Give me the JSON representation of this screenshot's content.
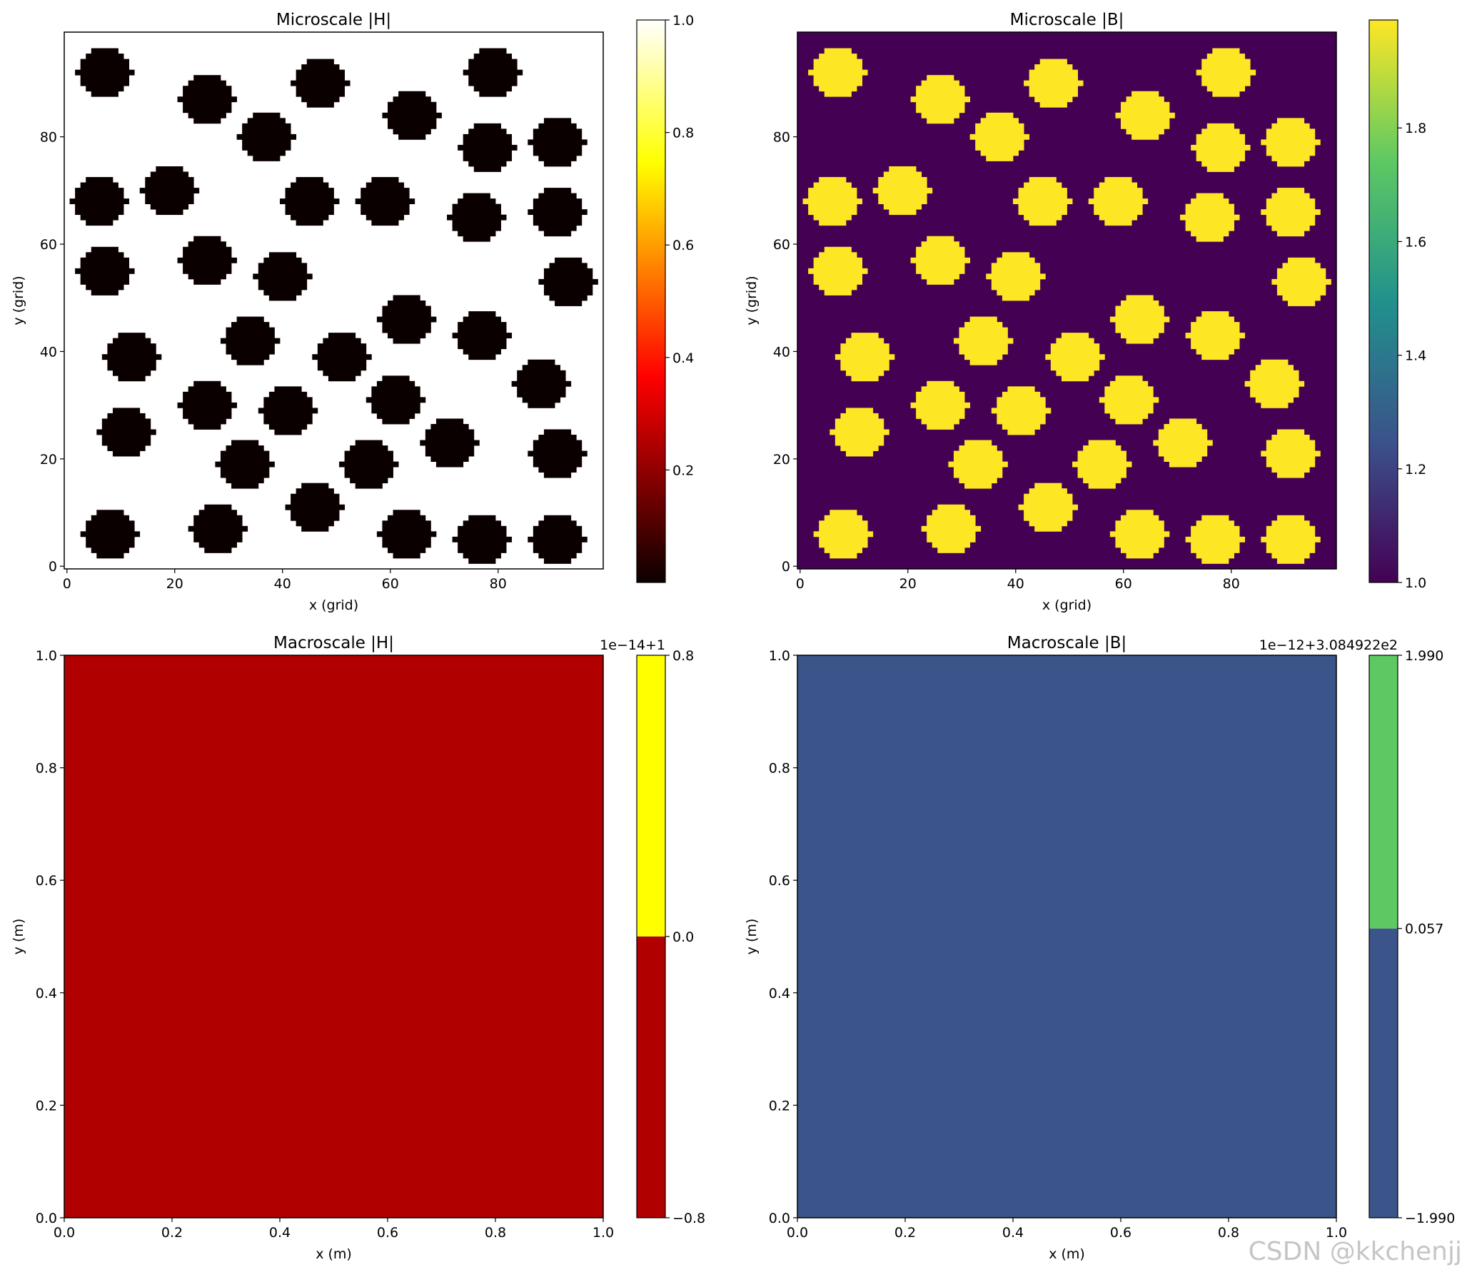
{
  "watermark": "CSDN @kkchenjj",
  "chart_data": [
    {
      "type": "heatmap",
      "id": "micro-h",
      "title": "Microscale |H|",
      "xlabel": "x (grid)",
      "ylabel": "y (grid)",
      "xlim": [
        -0.5,
        99.5
      ],
      "ylim": [
        -0.5,
        99.5
      ],
      "xticks": [
        "0",
        "20",
        "40",
        "60",
        "80"
      ],
      "yticks": [
        "0",
        "20",
        "40",
        "60",
        "80"
      ],
      "colormap": "hot",
      "background_value": 1.0,
      "inclusion_value": 0.0,
      "inclusion_color": "#0b0000",
      "background_color": "#ffffff",
      "inclusion_radius": 4.5,
      "inclusion_centers": [
        [
          7,
          92
        ],
        [
          26,
          87
        ],
        [
          47,
          90
        ],
        [
          79,
          92
        ],
        [
          37,
          80
        ],
        [
          64,
          84
        ],
        [
          78,
          78
        ],
        [
          91,
          79
        ],
        [
          6,
          68
        ],
        [
          19,
          70
        ],
        [
          45,
          68
        ],
        [
          59,
          68
        ],
        [
          76,
          65
        ],
        [
          91,
          66
        ],
        [
          7,
          55
        ],
        [
          26,
          57
        ],
        [
          40,
          54
        ],
        [
          93,
          53
        ],
        [
          12,
          39
        ],
        [
          34,
          42
        ],
        [
          51,
          39
        ],
        [
          63,
          46
        ],
        [
          77,
          43
        ],
        [
          88,
          34
        ],
        [
          26,
          30
        ],
        [
          41,
          29
        ],
        [
          61,
          31
        ],
        [
          11,
          25
        ],
        [
          33,
          19
        ],
        [
          56,
          19
        ],
        [
          71,
          23
        ],
        [
          91,
          21
        ],
        [
          46,
          11
        ],
        [
          8,
          6
        ],
        [
          28,
          7
        ],
        [
          63,
          6
        ],
        [
          77,
          5
        ],
        [
          91,
          5
        ]
      ],
      "colorbar": {
        "min": 0.0,
        "max": 1.0,
        "ticks": [
          "0.2",
          "0.4",
          "0.6",
          "0.8",
          "1.0"
        ]
      }
    },
    {
      "type": "heatmap",
      "id": "micro-b",
      "title": "Microscale |B|",
      "xlabel": "x (grid)",
      "ylabel": "y (grid)",
      "xlim": [
        -0.5,
        99.5
      ],
      "ylim": [
        -0.5,
        99.5
      ],
      "xticks": [
        "0",
        "20",
        "40",
        "60",
        "80"
      ],
      "yticks": [
        "0",
        "20",
        "40",
        "60",
        "80"
      ],
      "colormap": "viridis",
      "background_value": 1.0,
      "inclusion_value": 1.99,
      "inclusion_color": "#fde725",
      "background_color": "#440154",
      "colorbar": {
        "min": 1.0,
        "max": 1.99,
        "ticks": [
          "1.0",
          "1.2",
          "1.4",
          "1.6",
          "1.8"
        ]
      }
    },
    {
      "type": "heatmap",
      "id": "macro-h",
      "title": "Macroscale |H|",
      "xlabel": "x (m)",
      "ylabel": "y (m)",
      "xlim": [
        0.0,
        1.0
      ],
      "ylim": [
        0.0,
        1.0
      ],
      "xticks": [
        "0.0",
        "0.2",
        "0.4",
        "0.6",
        "0.8",
        "1.0"
      ],
      "yticks": [
        "0.0",
        "0.2",
        "0.4",
        "0.6",
        "0.8",
        "1.0"
      ],
      "fill_color": "#b00000",
      "colorbar": {
        "offset_text": "1e−14+1",
        "levels": [
          -0.8,
          0.0,
          0.8
        ],
        "ticks": [
          "−0.8",
          "0.0",
          "0.8"
        ],
        "band_colors": [
          "#b00000",
          "#ffff00"
        ]
      }
    },
    {
      "type": "heatmap",
      "id": "macro-b",
      "title": "Macroscale |B|",
      "xlabel": "x (m)",
      "ylabel": "y (m)",
      "xlim": [
        0.0,
        1.0
      ],
      "ylim": [
        0.0,
        1.0
      ],
      "xticks": [
        "0.0",
        "0.2",
        "0.4",
        "0.6",
        "0.8",
        "1.0"
      ],
      "yticks": [
        "0.0",
        "0.2",
        "0.4",
        "0.6",
        "0.8",
        "1.0"
      ],
      "fill_color": "#3b5489",
      "colorbar": {
        "offset_text": "1e−12+3.084922e2",
        "levels": [
          -1.99,
          0.057,
          1.99
        ],
        "ticks": [
          "−1.990",
          "0.057",
          "1.990"
        ],
        "band_colors": [
          "#3b5489",
          "#5ec962"
        ]
      }
    }
  ]
}
